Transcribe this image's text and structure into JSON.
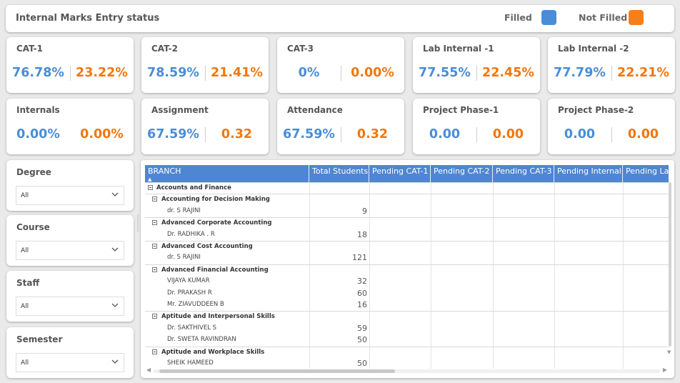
{
  "header": {
    "title": "Internal Marks Entry status",
    "legend_filled": "Filled",
    "legend_not_filled": "Not Filled",
    "filled_color": "#4a8dd6",
    "not_filled_color": "#f77f1a"
  },
  "kpis": [
    {
      "title": "CAT-1",
      "filled": "76.78%",
      "not_filled": "23.22%",
      "divider": true
    },
    {
      "title": "CAT-2",
      "filled": "78.59%",
      "not_filled": "21.41%",
      "divider": true
    },
    {
      "title": "CAT-3",
      "filled": "0%",
      "not_filled": "0.00%",
      "divider": true
    },
    {
      "title": "Lab Internal -1",
      "filled": "77.55%",
      "not_filled": "22.45%",
      "divider": true
    },
    {
      "title": "Lab Internal -2",
      "filled": "77.79%",
      "not_filled": "22.21%",
      "divider": true
    },
    {
      "title": "Internals",
      "filled": "0.00%",
      "not_filled": "0.00%",
      "divider": false
    },
    {
      "title": "Assignment",
      "filled": "67.59%",
      "not_filled": "0.32",
      "divider": true
    },
    {
      "title": "Attendance",
      "filled": "67.59%",
      "not_filled": "0.32",
      "divider": true
    },
    {
      "title": "Project Phase-1",
      "filled": "0.00",
      "not_filled": "0.00",
      "divider": true
    },
    {
      "title": "Project Phase-2",
      "filled": "0.00",
      "not_filled": "0.00",
      "divider": true
    }
  ],
  "slicers": [
    {
      "title": "Degree",
      "value": "All"
    },
    {
      "title": "Course",
      "value": "All"
    },
    {
      "title": "Staff",
      "value": "All"
    },
    {
      "title": "Semester",
      "value": "All"
    }
  ],
  "table": {
    "columns": [
      "BRANCH",
      "Total Students",
      "Pending CAT-1",
      "Pending CAT-2",
      "Pending CAT-3",
      "Pending Internal",
      "Pending La"
    ],
    "rows": [
      {
        "level": 0,
        "label": "Accounts and Finance",
        "value": ""
      },
      {
        "level": 1,
        "label": "Accounting for Decision Making",
        "value": ""
      },
      {
        "level": 2,
        "label": "dr. S RAJINI",
        "value": "9"
      },
      {
        "level": 1,
        "label": "Advanced Corporate Accounting",
        "value": ""
      },
      {
        "level": 2,
        "label": "Dr. RADHIKA . R",
        "value": "18"
      },
      {
        "level": 1,
        "label": "Advanced Cost Accounting",
        "value": ""
      },
      {
        "level": 2,
        "label": "dr. S RAJINI",
        "value": "121"
      },
      {
        "level": 1,
        "label": "Advanced Financial Accounting",
        "value": ""
      },
      {
        "level": 2,
        "label": "VIJAYA KUMAR",
        "value": "32"
      },
      {
        "level": 2,
        "label": "Dr. PRAKASH R",
        "value": "60"
      },
      {
        "level": 2,
        "label": "Mr. ZIAVUDDEEN B",
        "value": "16"
      },
      {
        "level": 1,
        "label": "Aptitude and Interpersonal Skills",
        "value": ""
      },
      {
        "level": 2,
        "label": "Dr. SAKTHIVEL S",
        "value": "59"
      },
      {
        "level": 2,
        "label": "Dr. SWETA RAVINDRAN",
        "value": "50"
      },
      {
        "level": 1,
        "label": "Aptitude and Workplace Skills",
        "value": ""
      },
      {
        "level": 2,
        "label": "SHEIK HAMEED",
        "value": "50"
      }
    ]
  }
}
